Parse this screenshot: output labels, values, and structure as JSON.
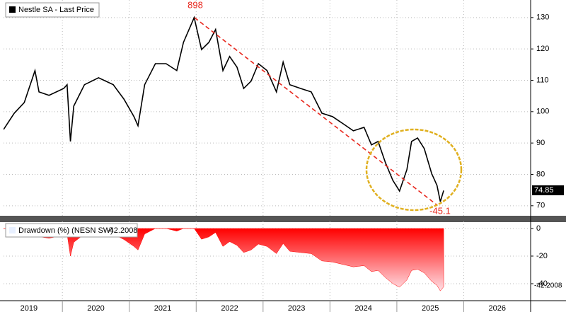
{
  "chart_data": [
    {
      "type": "line",
      "series": [
        {
          "name": "Nestle SA - Last Price",
          "color": "#000000",
          "values": [
            94.3,
            99.5,
            102.9,
            113.1,
            106.3,
            105.2,
            107.4,
            108.6,
            90.5,
            101.8,
            108.6,
            110.8,
            108.6,
            104.0,
            98.4,
            95.5,
            108.6,
            115.3,
            115.3,
            113.1,
            122.1,
            130.0,
            119.8,
            122.1,
            126.2,
            113.1,
            117.6,
            114.2,
            107.4,
            109.7,
            115.3,
            113.1,
            106.3,
            115.8,
            108.6,
            107.4,
            106.3,
            99.5,
            98.4,
            96.1,
            93.9,
            95.0,
            89.4,
            90.5,
            83.7,
            78.1,
            74.7,
            81.5,
            90.5,
            91.6,
            88.2,
            80.3,
            76.5,
            71.3,
            74.85
          ]
        }
      ],
      "x": [
        2019.12,
        2019.28,
        2019.43,
        2019.59,
        2019.65,
        2019.8,
        2020.02,
        2020.07,
        2020.12,
        2020.17,
        2020.33,
        2020.54,
        2020.76,
        2020.92,
        2021.07,
        2021.13,
        2021.23,
        2021.39,
        2021.55,
        2021.71,
        2021.81,
        2021.97,
        2022.08,
        2022.19,
        2022.29,
        2022.4,
        2022.5,
        2022.61,
        2022.71,
        2022.82,
        2022.93,
        2023.06,
        2023.2,
        2023.3,
        2023.4,
        2023.56,
        2023.72,
        2023.88,
        2024.04,
        2024.2,
        2024.35,
        2024.51,
        2024.62,
        2024.72,
        2024.83,
        2024.94,
        2025.04,
        2025.15,
        2025.22,
        2025.31,
        2025.41,
        2025.52,
        2025.6,
        2025.65,
        2025.7
      ],
      "xlim": [
        2019.12,
        2027.0
      ],
      "xticks": [
        2019,
        2020,
        2021,
        2022,
        2023,
        2024,
        2025,
        2026
      ],
      "ylim": [
        66.8,
        135.6
      ],
      "yticks": [
        70,
        80,
        90,
        100,
        110,
        120,
        130
      ],
      "grid": true,
      "annotations": [
        "898",
        "-45.1"
      ]
    },
    {
      "type": "area",
      "series": [
        {
          "name": "Drawdown (%) (NESN SW)",
          "color": "#ff0000",
          "values": [
            0,
            0,
            0,
            0,
            -6.0,
            -7.0,
            -5.0,
            -4.0,
            -20.0,
            -10.0,
            -4.0,
            -2.0,
            -4.0,
            -8.0,
            -13.0,
            -15.6,
            -4.0,
            0,
            0,
            -1.9,
            0,
            0,
            -7.8,
            -6.1,
            -2.9,
            -13.0,
            -9.5,
            -12.2,
            -17.4,
            -15.6,
            -11.3,
            -13.0,
            -18.2,
            -10.9,
            -16.5,
            -17.4,
            -18.2,
            -23.5,
            -24.3,
            -26.1,
            -27.8,
            -26.9,
            -31.2,
            -30.4,
            -35.6,
            -39.9,
            -42.5,
            -37.3,
            -30.4,
            -29.5,
            -32.2,
            -38.2,
            -41.2,
            -45.2,
            -42.2008
          ]
        }
      ],
      "x": [
        2019.12,
        2019.28,
        2019.43,
        2019.59,
        2019.65,
        2019.8,
        2020.02,
        2020.07,
        2020.12,
        2020.17,
        2020.33,
        2020.54,
        2020.76,
        2020.92,
        2021.07,
        2021.13,
        2021.23,
        2021.39,
        2021.55,
        2021.71,
        2021.81,
        2021.97,
        2022.08,
        2022.19,
        2022.29,
        2022.4,
        2022.5,
        2022.61,
        2022.71,
        2022.82,
        2022.93,
        2023.06,
        2023.2,
        2023.3,
        2023.4,
        2023.56,
        2023.72,
        2023.88,
        2024.04,
        2024.2,
        2024.35,
        2024.51,
        2024.62,
        2024.72,
        2024.83,
        2024.94,
        2025.04,
        2025.15,
        2025.22,
        2025.31,
        2025.41,
        2025.52,
        2025.6,
        2025.65,
        2025.7
      ],
      "xlim": [
        2019.12,
        2027.0
      ],
      "ylim": [
        -52.3,
        5.1
      ],
      "yticks": [
        0,
        -20,
        -40
      ],
      "grid": true
    }
  ]
}
